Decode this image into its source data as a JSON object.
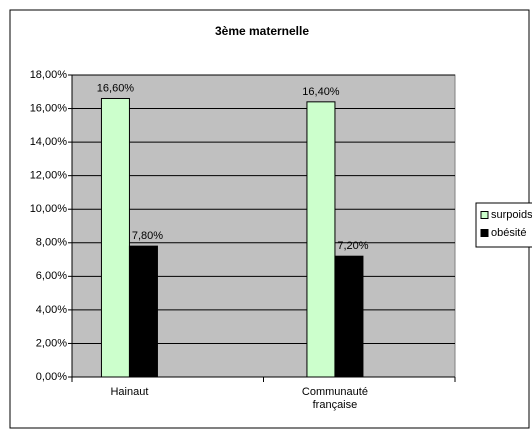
{
  "chart_data": {
    "type": "bar",
    "title": "3ème maternelle",
    "categories": [
      "Hainaut",
      "Communauté française"
    ],
    "series": [
      {
        "name": "surpoids",
        "color": "#ccffcc",
        "values": [
          16.6,
          16.4
        ],
        "value_labels": [
          "16,60%",
          "16,40%"
        ]
      },
      {
        "name": "obésité",
        "color": "#000000",
        "values": [
          7.8,
          7.2
        ],
        "value_labels": [
          "7,80%",
          "7,20%"
        ]
      }
    ],
    "ylim": [
      0,
      18
    ],
    "yticks": [
      {
        "value": 0,
        "label": "0,00%"
      },
      {
        "value": 2,
        "label": "2,00%"
      },
      {
        "value": 4,
        "label": "4,00%"
      },
      {
        "value": 6,
        "label": "6,00%"
      },
      {
        "value": 8,
        "label": "8,00%"
      },
      {
        "value": 10,
        "label": "10,00%"
      },
      {
        "value": 12,
        "label": "12,00%"
      },
      {
        "value": 14,
        "label": "14,00%"
      },
      {
        "value": 16,
        "label": "16,00%"
      },
      {
        "value": 18,
        "label": "18,00%"
      }
    ],
    "grid": true,
    "legend": "right"
  }
}
